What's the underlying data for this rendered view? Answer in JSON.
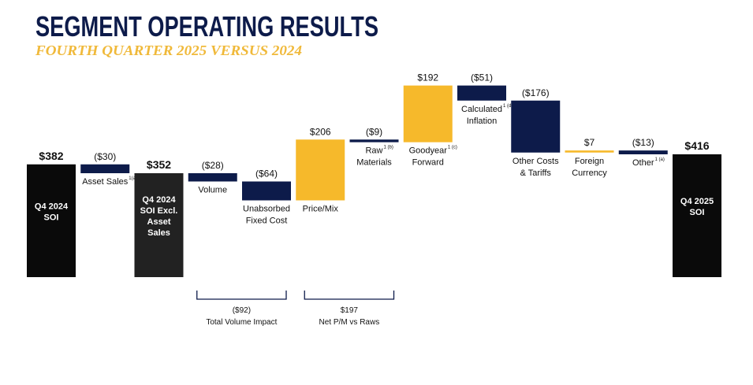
{
  "chart_data": {
    "type": "waterfall",
    "title": "SEGMENT OPERATING RESULTS",
    "subtitle": "FOURTH QUARTER 2025 VERSUS 2024",
    "categories": [
      "Q4 2024 SOI",
      "Asset Sales",
      "Q4 2024 SOI Excl. Asset Sales",
      "Volume",
      "Unabsorbed Fixed Cost",
      "Price/Mix",
      "Raw Materials",
      "Goodyear Forward",
      "Calculated Inflation",
      "Other Costs & Tariffs",
      "Foreign Currency",
      "Other",
      "Q4 2025 SOI"
    ],
    "category_notes": [
      null,
      "1(a)",
      null,
      null,
      null,
      null,
      "1 (b)",
      "1 (c)",
      "1 (d)",
      null,
      null,
      "1 (a)",
      null
    ],
    "values": [
      382,
      -30,
      352,
      -28,
      -64,
      206,
      -9,
      192,
      -51,
      -176,
      7,
      -13,
      416
    ],
    "value_labels": [
      "$382",
      "($30)",
      "$352",
      "($28)",
      "($64)",
      "$206",
      "($9)",
      "$192",
      "($51)",
      "($176)",
      "$7",
      "($13)",
      "$416"
    ],
    "totals": [
      0,
      2,
      12
    ],
    "total_colors": [
      "#0a0a0a",
      "#222222",
      "#0a0a0a"
    ],
    "negative_color": "#0d1b4a",
    "positive_color": "#f6b92b",
    "annotations": [
      {
        "value": -92,
        "value_label": "($92)",
        "text": "Total Volume Impact"
      },
      {
        "value": 197,
        "value_label": "$197",
        "text": "Net P/M vs Raws"
      }
    ]
  }
}
